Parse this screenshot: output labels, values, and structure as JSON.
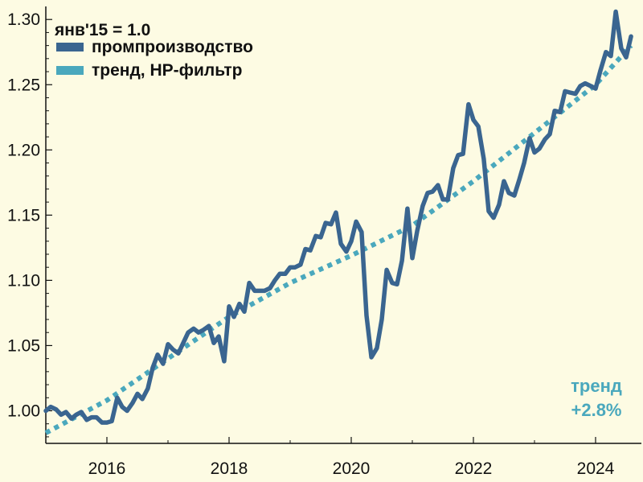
{
  "chart_data": {
    "type": "line",
    "title": "",
    "xlabel": "",
    "ylabel": "",
    "xlim": [
      2015.0,
      2024.75
    ],
    "ylim": [
      0.975,
      1.31
    ],
    "yticks": [
      1.0,
      1.05,
      1.1,
      1.15,
      1.2,
      1.25,
      1.3
    ],
    "ytick_labels": [
      "1.00",
      "1.05",
      "1.10",
      "1.15",
      "1.20",
      "1.25",
      "1.30"
    ],
    "xticks": [
      2016,
      2018,
      2020,
      2022,
      2024
    ],
    "xtick_labels": [
      "2016",
      "2018",
      "2020",
      "2022",
      "2024"
    ],
    "grid": false,
    "legend_position": "top-left",
    "legend_header": "янв'15 = 1.0",
    "annotation": {
      "line1": "тренд",
      "line2": "+2.8%"
    },
    "colors": {
      "series": "#3a6590",
      "trend": "#4aa8bd",
      "axis": "#111111",
      "background": "#fdfbe3"
    },
    "series": [
      {
        "name": "промпроизводство",
        "style": "solid",
        "points": [
          [
            2015.0,
            1.0
          ],
          [
            2015.08,
            1.003
          ],
          [
            2015.17,
            1.001
          ],
          [
            2015.25,
            0.997
          ],
          [
            2015.33,
            0.999
          ],
          [
            2015.42,
            0.994
          ],
          [
            2015.5,
            0.997
          ],
          [
            2015.58,
            0.999
          ],
          [
            2015.67,
            0.993
          ],
          [
            2015.75,
            0.995
          ],
          [
            2015.83,
            0.995
          ],
          [
            2015.92,
            0.991
          ],
          [
            2016.0,
            0.991
          ],
          [
            2016.08,
            0.992
          ],
          [
            2016.17,
            1.01
          ],
          [
            2016.25,
            1.003
          ],
          [
            2016.33,
            1.0
          ],
          [
            2016.42,
            1.006
          ],
          [
            2016.5,
            1.013
          ],
          [
            2016.58,
            1.009
          ],
          [
            2016.67,
            1.017
          ],
          [
            2016.75,
            1.033
          ],
          [
            2016.83,
            1.043
          ],
          [
            2016.92,
            1.036
          ],
          [
            2017.0,
            1.051
          ],
          [
            2017.08,
            1.047
          ],
          [
            2017.17,
            1.044
          ],
          [
            2017.25,
            1.052
          ],
          [
            2017.33,
            1.06
          ],
          [
            2017.42,
            1.063
          ],
          [
            2017.5,
            1.06
          ],
          [
            2017.58,
            1.062
          ],
          [
            2017.67,
            1.065
          ],
          [
            2017.75,
            1.052
          ],
          [
            2017.83,
            1.057
          ],
          [
            2017.92,
            1.038
          ],
          [
            2018.0,
            1.08
          ],
          [
            2018.08,
            1.072
          ],
          [
            2018.17,
            1.082
          ],
          [
            2018.25,
            1.076
          ],
          [
            2018.33,
            1.098
          ],
          [
            2018.42,
            1.092
          ],
          [
            2018.5,
            1.092
          ],
          [
            2018.58,
            1.092
          ],
          [
            2018.67,
            1.094
          ],
          [
            2018.75,
            1.1
          ],
          [
            2018.83,
            1.105
          ],
          [
            2018.92,
            1.105
          ],
          [
            2019.0,
            1.11
          ],
          [
            2019.08,
            1.11
          ],
          [
            2019.17,
            1.112
          ],
          [
            2019.25,
            1.124
          ],
          [
            2019.33,
            1.123
          ],
          [
            2019.42,
            1.134
          ],
          [
            2019.5,
            1.133
          ],
          [
            2019.58,
            1.144
          ],
          [
            2019.67,
            1.143
          ],
          [
            2019.75,
            1.152
          ],
          [
            2019.83,
            1.128
          ],
          [
            2019.92,
            1.122
          ],
          [
            2020.0,
            1.13
          ],
          [
            2020.08,
            1.145
          ],
          [
            2020.17,
            1.137
          ],
          [
            2020.25,
            1.073
          ],
          [
            2020.33,
            1.041
          ],
          [
            2020.42,
            1.048
          ],
          [
            2020.5,
            1.07
          ],
          [
            2020.58,
            1.108
          ],
          [
            2020.67,
            1.098
          ],
          [
            2020.75,
            1.097
          ],
          [
            2020.83,
            1.115
          ],
          [
            2020.92,
            1.155
          ],
          [
            2021.0,
            1.117
          ],
          [
            2021.08,
            1.138
          ],
          [
            2021.17,
            1.157
          ],
          [
            2021.25,
            1.167
          ],
          [
            2021.33,
            1.168
          ],
          [
            2021.42,
            1.173
          ],
          [
            2021.5,
            1.162
          ],
          [
            2021.58,
            1.162
          ],
          [
            2021.67,
            1.186
          ],
          [
            2021.75,
            1.196
          ],
          [
            2021.83,
            1.197
          ],
          [
            2021.92,
            1.235
          ],
          [
            2022.0,
            1.223
          ],
          [
            2022.08,
            1.218
          ],
          [
            2022.17,
            1.193
          ],
          [
            2022.25,
            1.153
          ],
          [
            2022.33,
            1.148
          ],
          [
            2022.42,
            1.158
          ],
          [
            2022.5,
            1.176
          ],
          [
            2022.58,
            1.167
          ],
          [
            2022.67,
            1.165
          ],
          [
            2022.75,
            1.177
          ],
          [
            2022.83,
            1.19
          ],
          [
            2022.92,
            1.209
          ],
          [
            2023.0,
            1.198
          ],
          [
            2023.08,
            1.201
          ],
          [
            2023.17,
            1.208
          ],
          [
            2023.25,
            1.212
          ],
          [
            2023.33,
            1.23
          ],
          [
            2023.42,
            1.229
          ],
          [
            2023.5,
            1.245
          ],
          [
            2023.58,
            1.244
          ],
          [
            2023.67,
            1.243
          ],
          [
            2023.75,
            1.249
          ],
          [
            2023.83,
            1.251
          ],
          [
            2023.92,
            1.249
          ],
          [
            2024.0,
            1.247
          ],
          [
            2024.08,
            1.261
          ],
          [
            2024.17,
            1.275
          ],
          [
            2024.25,
            1.272
          ],
          [
            2024.33,
            1.306
          ],
          [
            2024.42,
            1.278
          ],
          [
            2024.5,
            1.271
          ],
          [
            2024.58,
            1.287
          ]
        ]
      },
      {
        "name": "тренд, HP-фильтр",
        "style": "dotted",
        "points": [
          [
            2015.0,
            0.983
          ],
          [
            2016.0,
            1.008
          ],
          [
            2017.0,
            1.04
          ],
          [
            2018.0,
            1.072
          ],
          [
            2019.0,
            1.098
          ],
          [
            2020.0,
            1.119
          ],
          [
            2021.0,
            1.142
          ],
          [
            2022.0,
            1.176
          ],
          [
            2023.0,
            1.213
          ],
          [
            2024.0,
            1.25
          ],
          [
            2024.58,
            1.28
          ]
        ]
      }
    ]
  }
}
